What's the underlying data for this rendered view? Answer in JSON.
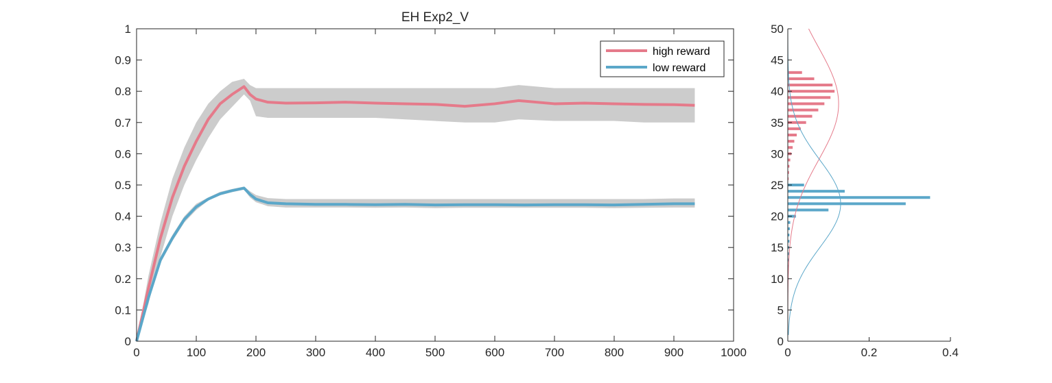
{
  "chart_data": [
    {
      "type": "line",
      "title": "EH  Exp2_V",
      "xlabel": "",
      "ylabel": "",
      "xlim": [
        0,
        1000
      ],
      "ylim": [
        0,
        1
      ],
      "xticks": [
        "0",
        "100",
        "200",
        "300",
        "400",
        "500",
        "600",
        "700",
        "800",
        "900",
        "1000"
      ],
      "yticks": [
        "0",
        "0.1",
        "0.2",
        "0.3",
        "0.4",
        "0.5",
        "0.6",
        "0.7",
        "0.8",
        "0.9",
        "1"
      ],
      "grid": false,
      "legend_position": "top-right",
      "shaded_band_color": "#cccccc",
      "series": [
        {
          "name": "high reward",
          "color": "#e57a8a",
          "x": [
            0,
            20,
            40,
            60,
            80,
            100,
            120,
            140,
            160,
            180,
            190,
            200,
            220,
            250,
            300,
            350,
            400,
            450,
            500,
            550,
            600,
            640,
            700,
            750,
            800,
            850,
            900,
            935
          ],
          "y": [
            0,
            0.17,
            0.33,
            0.46,
            0.56,
            0.64,
            0.71,
            0.76,
            0.79,
            0.815,
            0.79,
            0.775,
            0.765,
            0.762,
            0.763,
            0.765,
            0.762,
            0.76,
            0.758,
            0.752,
            0.76,
            0.77,
            0.76,
            0.762,
            0.76,
            0.758,
            0.757,
            0.755
          ],
          "band_upper": [
            0,
            0.21,
            0.38,
            0.52,
            0.62,
            0.7,
            0.76,
            0.8,
            0.83,
            0.84,
            0.82,
            0.81,
            0.81,
            0.81,
            0.81,
            0.81,
            0.81,
            0.81,
            0.81,
            0.81,
            0.81,
            0.82,
            0.81,
            0.81,
            0.81,
            0.81,
            0.81,
            0.81
          ],
          "band_lower": [
            0,
            0.12,
            0.27,
            0.4,
            0.5,
            0.58,
            0.65,
            0.71,
            0.75,
            0.79,
            0.77,
            0.72,
            0.715,
            0.715,
            0.715,
            0.715,
            0.715,
            0.71,
            0.705,
            0.7,
            0.7,
            0.71,
            0.705,
            0.705,
            0.705,
            0.7,
            0.7,
            0.7
          ]
        },
        {
          "name": "low reward",
          "color": "#5ba7c9",
          "x": [
            0,
            20,
            40,
            60,
            80,
            100,
            120,
            140,
            160,
            180,
            190,
            200,
            220,
            250,
            300,
            350,
            400,
            450,
            500,
            550,
            600,
            650,
            700,
            750,
            800,
            850,
            900,
            935
          ],
          "y": [
            0,
            0.14,
            0.26,
            0.33,
            0.39,
            0.43,
            0.455,
            0.472,
            0.482,
            0.49,
            0.47,
            0.455,
            0.443,
            0.44,
            0.438,
            0.438,
            0.437,
            0.438,
            0.436,
            0.437,
            0.437,
            0.436,
            0.437,
            0.437,
            0.436,
            0.438,
            0.44,
            0.44
          ],
          "band_upper": [
            0,
            0.15,
            0.27,
            0.34,
            0.4,
            0.44,
            0.46,
            0.478,
            0.487,
            0.495,
            0.48,
            0.468,
            0.458,
            0.455,
            0.455,
            0.455,
            0.455,
            0.455,
            0.455,
            0.455,
            0.455,
            0.455,
            0.455,
            0.455,
            0.455,
            0.455,
            0.457,
            0.457
          ],
          "band_lower": [
            0,
            0.13,
            0.25,
            0.32,
            0.38,
            0.42,
            0.45,
            0.467,
            0.477,
            0.485,
            0.46,
            0.445,
            0.432,
            0.428,
            0.428,
            0.428,
            0.427,
            0.428,
            0.426,
            0.427,
            0.427,
            0.427,
            0.427,
            0.427,
            0.426,
            0.427,
            0.428,
            0.428
          ]
        }
      ]
    },
    {
      "type": "bar",
      "orientation": "horizontal",
      "title": "",
      "xlabel": "",
      "ylabel": "",
      "xlim": [
        0,
        0.4
      ],
      "ylim": [
        0,
        50
      ],
      "xticks": [
        "0",
        "0.2",
        "0.4"
      ],
      "yticks": [
        "0",
        "5",
        "10",
        "15",
        "20",
        "25",
        "30",
        "35",
        "40",
        "45",
        "50"
      ],
      "grid": false,
      "series": [
        {
          "name": "high reward",
          "color": "#e57a8a",
          "bins": [
            26,
            27,
            28,
            29,
            30,
            31,
            32,
            33,
            34,
            35,
            36,
            37,
            38,
            39,
            40,
            41,
            42,
            43
          ],
          "values": [
            0.002,
            0.003,
            0.004,
            0.006,
            0.009,
            0.012,
            0.016,
            0.022,
            0.032,
            0.045,
            0.06,
            0.075,
            0.09,
            0.105,
            0.115,
            0.11,
            0.065,
            0.035
          ]
        },
        {
          "name": "low reward",
          "color": "#5ba7c9",
          "bins": [
            8,
            9,
            10,
            11,
            12,
            13,
            14,
            15,
            16,
            17,
            18,
            19,
            20,
            21,
            22,
            23,
            24,
            25
          ],
          "values": [
            0.001,
            0.001,
            0.002,
            0.002,
            0.002,
            0.003,
            0.003,
            0.003,
            0.004,
            0.004,
            0.005,
            0.006,
            0.02,
            0.1,
            0.29,
            0.35,
            0.14,
            0.04
          ]
        }
      ],
      "fit_curves": [
        {
          "name": "high reward",
          "color": "#e57a8a",
          "mean": 38,
          "sd": 9,
          "peak": 0.125,
          "y_range": [
            0,
            50
          ]
        },
        {
          "name": "low reward",
          "color": "#5ba7c9",
          "mean": 22,
          "sd": 7,
          "peak": 0.13,
          "y_range": [
            1,
            50
          ]
        }
      ]
    }
  ]
}
